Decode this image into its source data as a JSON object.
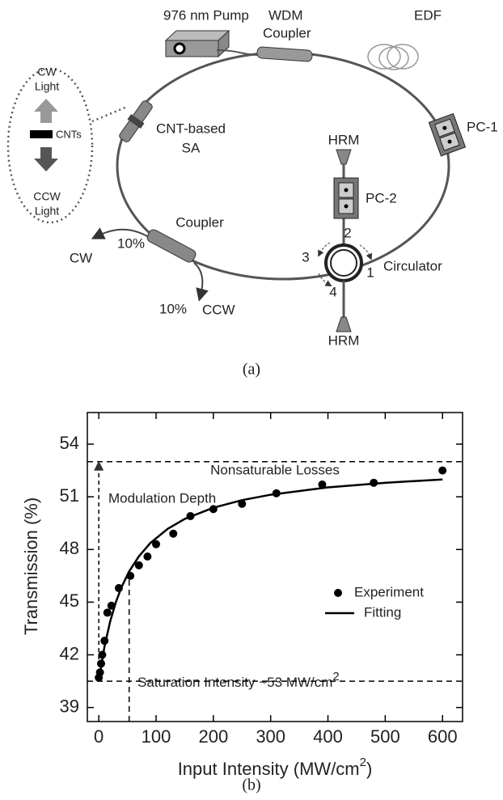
{
  "diagram": {
    "labels": {
      "pump": "976 nm Pump",
      "wdm_1": "WDM",
      "wdm_2": "Coupler",
      "edf": "EDF",
      "cw_1": "CW",
      "cw_2": "Light",
      "cnts": "CNTs",
      "ccw_1": "CCW",
      "ccw_2": "Light",
      "sa_1": "CNT-based",
      "sa_2": "SA",
      "hrm_top": "HRM",
      "pc2": "PC-2",
      "pc1": "PC-1",
      "coupler": "Coupler",
      "pct_cw": "10%",
      "out_cw": "CW",
      "pct_ccw": "10%",
      "out_ccw": "CCW",
      "port2": "2",
      "port3": "3",
      "port1": "1",
      "port4": "4",
      "circulator": "Circulator",
      "hrm_bottom": "HRM"
    },
    "caption": "(a)"
  },
  "chart_data": {
    "type": "scatter",
    "caption": "(b)",
    "xlabel": {
      "text": "Input Intensity (MW/cm",
      "superscript": "2",
      "suffix": ")"
    },
    "ylabel": "Transmission (%)",
    "xlim": [
      -20,
      635
    ],
    "ylim": [
      38.2,
      55.8
    ],
    "xticks": [
      0,
      100,
      200,
      300,
      400,
      500,
      600
    ],
    "yticks": [
      39,
      42,
      45,
      48,
      51,
      54
    ],
    "series": [
      {
        "name": "Experiment",
        "type": "scatter",
        "color": "#000000",
        "x": [
          0,
          2,
          4,
          6,
          10,
          15,
          22,
          35,
          55,
          70,
          85,
          100,
          130,
          160,
          200,
          250,
          310,
          390,
          480,
          600
        ],
        "values": [
          40.7,
          41.0,
          41.5,
          42.0,
          42.8,
          44.4,
          44.8,
          45.8,
          46.5,
          47.1,
          47.6,
          48.3,
          48.9,
          49.9,
          50.3,
          50.6,
          51.2,
          51.7,
          51.8,
          52.5
        ]
      },
      {
        "name": "Fitting",
        "type": "line",
        "color": "#000000",
        "x": [
          0,
          10,
          20,
          30,
          40,
          53,
          70,
          90,
          120,
          150,
          200,
          250,
          300,
          400,
          500,
          600
        ],
        "values": [
          40.5,
          42.48,
          43.92,
          45.02,
          45.88,
          46.75,
          47.61,
          48.37,
          49.17,
          49.74,
          50.38,
          50.81,
          51.12,
          51.54,
          51.8,
          51.99
        ]
      }
    ],
    "reference_lines": {
      "nonsaturable_losses": 53,
      "unsaturated": 40.5,
      "saturation_intensity": 53
    },
    "annotations": {
      "nonsaturable": "Nonsaturable Losses",
      "modulation": "Modulation Depth",
      "saturation": {
        "text": "Saturation Intensity ~53 MW/cm",
        "superscript": "2"
      }
    }
  }
}
